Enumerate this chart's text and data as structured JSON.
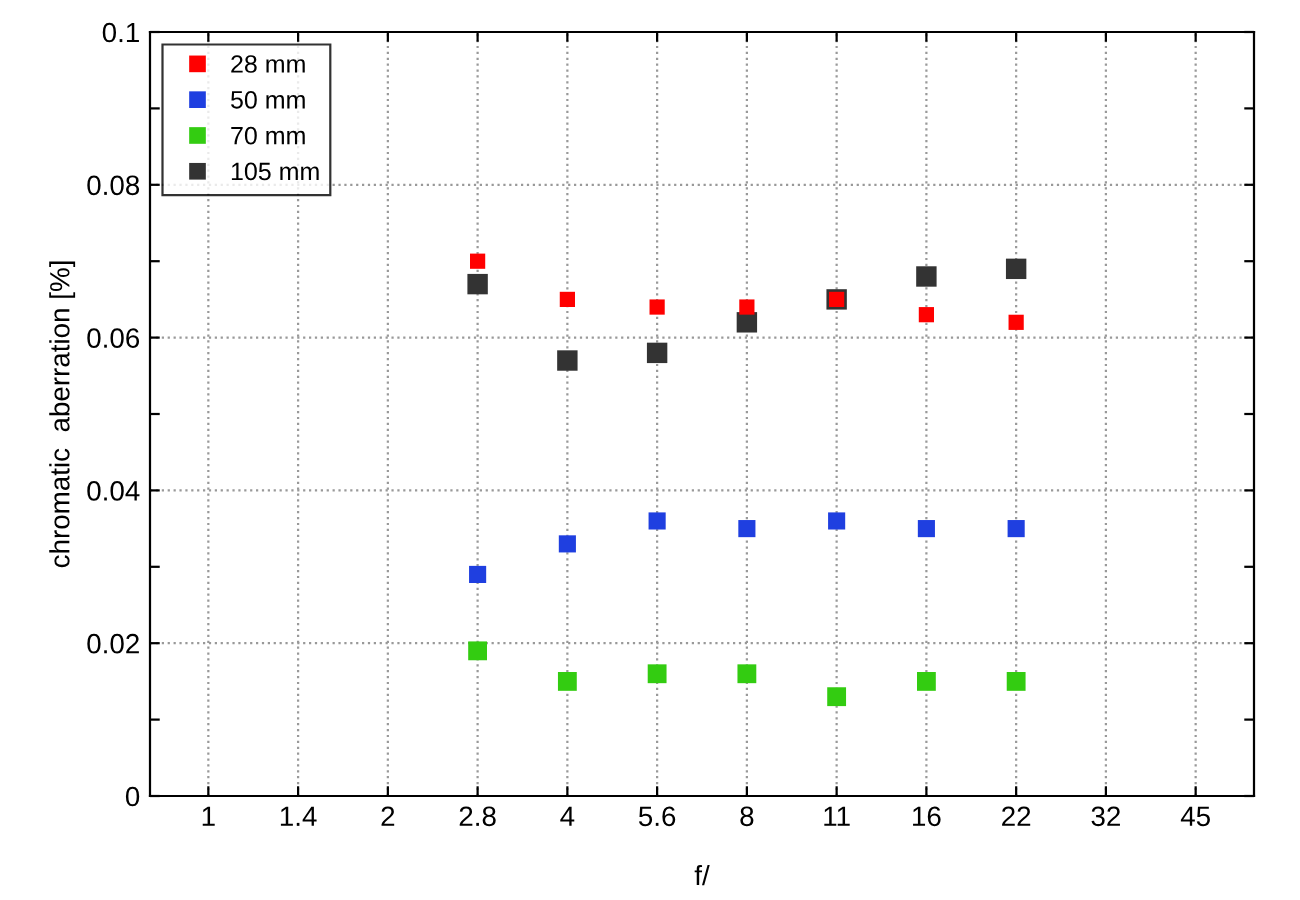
{
  "chart_data": {
    "type": "scatter",
    "xlabel": "f/",
    "ylabel": "chromatic  aberration [%]",
    "categories": [
      "1",
      "1.4",
      "2",
      "2.8",
      "4",
      "5.6",
      "8",
      "11",
      "16",
      "22",
      "32",
      "45"
    ],
    "series": [
      {
        "name": "28 mm",
        "color": "#ff0000",
        "values": [
          null,
          null,
          null,
          0.07,
          0.065,
          0.064,
          0.064,
          0.065,
          0.063,
          0.062,
          null,
          null
        ]
      },
      {
        "name": "50 mm",
        "color": "#1f3fe0",
        "values": [
          null,
          null,
          null,
          0.029,
          0.033,
          0.036,
          0.035,
          0.036,
          0.035,
          0.035,
          null,
          null
        ]
      },
      {
        "name": "70 mm",
        "color": "#33cc11",
        "values": [
          null,
          null,
          null,
          0.019,
          0.015,
          0.016,
          0.016,
          0.013,
          0.015,
          0.015,
          null,
          null
        ]
      },
      {
        "name": "105 mm",
        "color": "#333333",
        "values": [
          null,
          null,
          null,
          0.067,
          0.057,
          0.058,
          0.062,
          0.065,
          0.068,
          0.069,
          null,
          null
        ]
      }
    ],
    "ylim": [
      0,
      0.1
    ],
    "yticks": [
      0,
      {
        "value": 0.01,
        "label": null
      },
      0.02,
      {
        "value": 0.03,
        "label": null
      },
      0.04,
      {
        "value": 0.05,
        "label": null
      },
      0.06,
      {
        "value": 0.07,
        "label": null
      },
      0.08,
      {
        "value": 0.09,
        "label": null
      },
      0.1
    ],
    "grid": true,
    "legend": "top left",
    "marker": "square"
  }
}
